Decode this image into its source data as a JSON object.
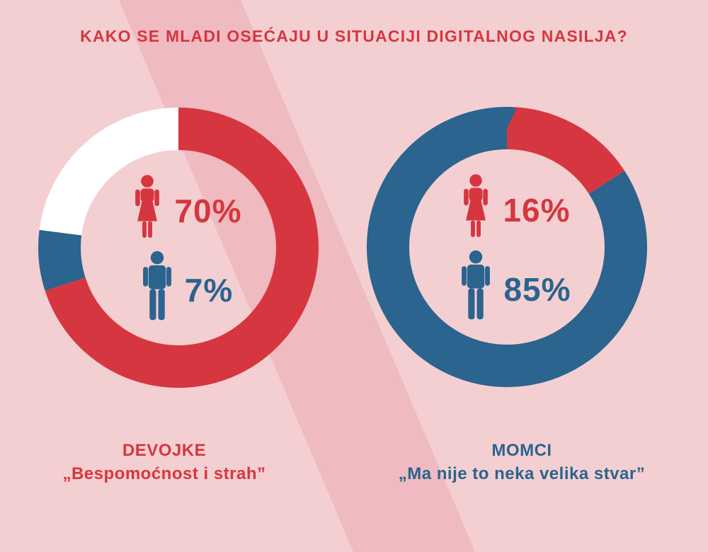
{
  "page": {
    "title": "KAKO SE MLADI OSEĆAJU U SITUACIJI DIGITALNOG NASILJA?",
    "background_color": "#f4cfd1",
    "stripe_color": "#efbac0",
    "accent_red": "#d6363f",
    "accent_blue": "#2a648f"
  },
  "chart_data": [
    {
      "type": "donut",
      "group_label": "DEVOJKE",
      "quote": "„Bespomoćnost i strah”",
      "group_color": "#d6363f",
      "segments": [
        {
          "value": 70,
          "color": "#d6363f"
        },
        {
          "value": 7,
          "color": "#2a648f"
        },
        {
          "value": 23,
          "color": "#ffffff"
        }
      ],
      "callouts": [
        {
          "icon": "female-icon",
          "label": "70%",
          "color_class": "red"
        },
        {
          "icon": "male-icon",
          "label": "7%",
          "color_class": "blue"
        }
      ]
    },
    {
      "type": "donut",
      "group_label": "MOMCI",
      "quote": "„Ma nije to neka velika stvar”",
      "group_color": "#2a648f",
      "segments": [
        {
          "value": 16,
          "color": "#d6363f"
        },
        {
          "value": 85,
          "color": "#2a648f"
        }
      ],
      "callouts": [
        {
          "icon": "female-icon",
          "label": "16%",
          "color_class": "red"
        },
        {
          "icon": "male-icon",
          "label": "85%",
          "color_class": "blue"
        }
      ]
    }
  ]
}
